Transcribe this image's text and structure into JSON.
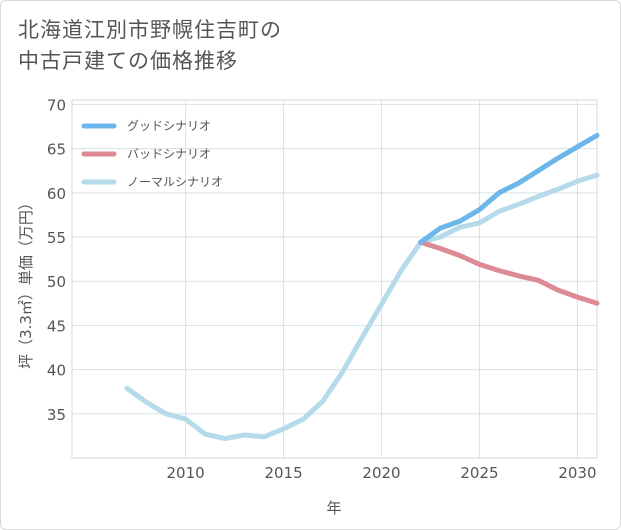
{
  "title": {
    "line1": "北海道江別市野幌住吉町の",
    "line2": "中古戸建ての価格推移"
  },
  "chart_data": {
    "type": "line",
    "xlabel": "年",
    "ylabel": "坪（3.3㎡）単価（万円）",
    "xlim": [
      2004.2,
      2031
    ],
    "ylim": [
      30,
      70.5
    ],
    "xticks": [
      2010,
      2015,
      2020,
      2025,
      2030
    ],
    "yticks": [
      35,
      40,
      45,
      50,
      55,
      60,
      65,
      70
    ],
    "grid": true,
    "legend_position": "top-left",
    "series": [
      {
        "name": "グッドシナリオ",
        "color": "#6bb6ea",
        "x": [
          2022,
          2023,
          2024,
          2025,
          2026,
          2027,
          2028,
          2029,
          2030,
          2031
        ],
        "y": [
          54.4,
          56.0,
          56.8,
          58.1,
          60.0,
          61.1,
          62.5,
          63.9,
          65.2,
          66.5
        ]
      },
      {
        "name": "バッドシナリオ",
        "color": "#dd8a94",
        "x": [
          2022,
          2023,
          2024,
          2025,
          2026,
          2027,
          2028,
          2029,
          2030,
          2031
        ],
        "y": [
          54.4,
          53.7,
          52.9,
          51.9,
          51.2,
          50.6,
          50.1,
          49.0,
          48.2,
          47.5
        ]
      },
      {
        "name": "ノーマルシナリオ",
        "color": "#b5dbea",
        "x": [
          2007,
          2008,
          2009,
          2010,
          2011,
          2012,
          2013,
          2014,
          2015,
          2016,
          2017,
          2018,
          2019,
          2020,
          2021,
          2022,
          2023,
          2024,
          2025,
          2026,
          2027,
          2028,
          2029,
          2030,
          2031
        ],
        "y": [
          37.9,
          36.3,
          35.0,
          34.4,
          32.7,
          32.2,
          32.6,
          32.4,
          33.3,
          34.4,
          36.4,
          39.7,
          43.6,
          47.4,
          51.2,
          54.4,
          55.0,
          56.1,
          56.6,
          57.9,
          58.7,
          59.6,
          60.4,
          61.3,
          62.0
        ]
      }
    ]
  }
}
